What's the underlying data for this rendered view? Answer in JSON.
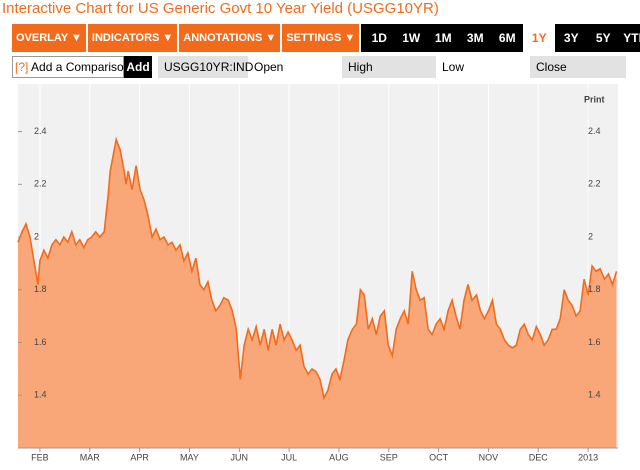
{
  "title": "Interactive Chart for US Generic Govt 10 Year Yield (USGG10YR)",
  "toolbar": {
    "menus": [
      "OVERLAY ▼",
      "INDICATORS ▼",
      "ANNOTATIONS ▼",
      "SETTINGS ▼"
    ],
    "ranges": [
      "1D",
      "1W",
      "1M",
      "3M",
      "6M",
      "1Y",
      "3Y",
      "5Y",
      "YTD"
    ],
    "selected_range_index": 5,
    "comparison": {
      "help": "[?]",
      "placeholder": "Add a Comparison",
      "button": "Add"
    },
    "quote": {
      "ticker": "USGG10YR:IND",
      "fields": [
        "Open",
        "High",
        "Low",
        "Close"
      ]
    },
    "print": "Print"
  },
  "chart_data": {
    "type": "area",
    "color": "#f9a779",
    "line_color": "#f26b1c",
    "grid": true,
    "xlim": [
      0.56,
      12.6
    ],
    "ylim": [
      1.2,
      2.55
    ],
    "xticks": [
      {
        "value": 1,
        "label": "FEB"
      },
      {
        "value": 2,
        "label": "MAR"
      },
      {
        "value": 3,
        "label": "APR"
      },
      {
        "value": 4,
        "label": "MAY"
      },
      {
        "value": 5,
        "label": "JUN"
      },
      {
        "value": 6,
        "label": "JUL"
      },
      {
        "value": 7,
        "label": "AUG"
      },
      {
        "value": 8,
        "label": "SEP"
      },
      {
        "value": 9,
        "label": "OCT"
      },
      {
        "value": 10,
        "label": "NOV"
      },
      {
        "value": 11,
        "label": "DEC"
      },
      {
        "value": 12,
        "label": "2013"
      }
    ],
    "yticks": [
      1.4,
      1.6,
      1.8,
      2,
      2.2,
      2.4
    ],
    "x": [
      0.56,
      0.64,
      0.72,
      0.8,
      0.88,
      0.96,
      1.0,
      1.08,
      1.16,
      1.24,
      1.32,
      1.4,
      1.48,
      1.56,
      1.64,
      1.72,
      1.8,
      1.88,
      1.96,
      2.04,
      2.12,
      2.2,
      2.29,
      2.37,
      2.41,
      2.49,
      2.53,
      2.61,
      2.69,
      2.73,
      2.77,
      2.85,
      2.93,
      3.01,
      3.09,
      3.17,
      3.25,
      3.33,
      3.41,
      3.49,
      3.57,
      3.65,
      3.73,
      3.81,
      3.89,
      3.97,
      4.05,
      4.13,
      4.21,
      4.29,
      4.37,
      4.45,
      4.53,
      4.61,
      4.69,
      4.78,
      4.86,
      4.94,
      5.02,
      5.1,
      5.18,
      5.26,
      5.34,
      5.42,
      5.5,
      5.58,
      5.66,
      5.74,
      5.82,
      5.9,
      5.98,
      6.06,
      6.14,
      6.22,
      6.3,
      6.38,
      6.46,
      6.54,
      6.62,
      6.7,
      6.78,
      6.86,
      6.94,
      7.02,
      7.1,
      7.18,
      7.27,
      7.35,
      7.43,
      7.51,
      7.59,
      7.67,
      7.75,
      7.83,
      7.91,
      7.99,
      8.07,
      8.15,
      8.23,
      8.31,
      8.39,
      8.47,
      8.55,
      8.63,
      8.71,
      8.79,
      8.87,
      8.95,
      9.03,
      9.11,
      9.19,
      9.27,
      9.35,
      9.43,
      9.51,
      9.59,
      9.67,
      9.76,
      9.84,
      9.92,
      10.0,
      10.08,
      10.16,
      10.24,
      10.32,
      10.4,
      10.48,
      10.56,
      10.64,
      10.72,
      10.8,
      10.88,
      10.96,
      11.04,
      11.12,
      11.2,
      11.28,
      11.36,
      11.44,
      11.52,
      11.6,
      11.68,
      11.76,
      11.84,
      11.92,
      12.0,
      12.08,
      12.16,
      12.24,
      12.33,
      12.41,
      12.49,
      12.57
    ],
    "values": [
      1.98,
      2.02,
      2.05,
      2.0,
      1.91,
      1.82,
      1.91,
      1.95,
      1.92,
      1.97,
      1.99,
      1.97,
      2.0,
      1.98,
      2.02,
      1.97,
      1.99,
      1.96,
      1.99,
      2.0,
      2.02,
      2.0,
      2.02,
      2.16,
      2.25,
      2.33,
      2.37,
      2.33,
      2.25,
      2.2,
      2.25,
      2.18,
      2.27,
      2.18,
      2.14,
      2.08,
      2.0,
      2.03,
      1.99,
      2.0,
      1.97,
      1.98,
      1.95,
      1.97,
      1.91,
      1.94,
      1.87,
      1.92,
      1.82,
      1.8,
      1.83,
      1.76,
      1.72,
      1.74,
      1.77,
      1.76,
      1.72,
      1.65,
      1.46,
      1.59,
      1.65,
      1.61,
      1.66,
      1.59,
      1.65,
      1.57,
      1.65,
      1.59,
      1.67,
      1.61,
      1.64,
      1.61,
      1.57,
      1.59,
      1.51,
      1.48,
      1.5,
      1.49,
      1.46,
      1.39,
      1.42,
      1.48,
      1.5,
      1.46,
      1.53,
      1.61,
      1.65,
      1.67,
      1.8,
      1.78,
      1.65,
      1.69,
      1.63,
      1.7,
      1.72,
      1.59,
      1.55,
      1.65,
      1.69,
      1.72,
      1.67,
      1.87,
      1.8,
      1.76,
      1.77,
      1.65,
      1.63,
      1.67,
      1.69,
      1.65,
      1.72,
      1.76,
      1.7,
      1.65,
      1.76,
      1.82,
      1.76,
      1.78,
      1.72,
      1.69,
      1.72,
      1.76,
      1.67,
      1.65,
      1.61,
      1.59,
      1.58,
      1.59,
      1.65,
      1.67,
      1.63,
      1.61,
      1.66,
      1.63,
      1.59,
      1.61,
      1.65,
      1.65,
      1.69,
      1.8,
      1.76,
      1.74,
      1.7,
      1.72,
      1.84,
      1.78,
      1.89,
      1.87,
      1.88,
      1.84,
      1.86,
      1.82,
      1.87
    ]
  }
}
